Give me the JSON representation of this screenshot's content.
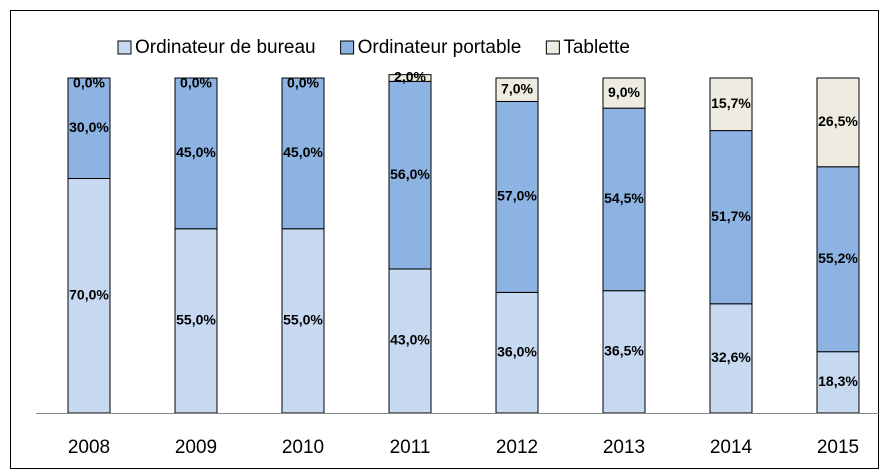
{
  "chart_data": {
    "type": "stacked_bar",
    "categories": [
      "2008",
      "2009",
      "2010",
      "2011",
      "2012",
      "2013",
      "2014",
      "2015"
    ],
    "series": [
      {
        "name": "Ordinateur de bureau",
        "color": "#c6d9f1",
        "values": [
          70,
          55,
          55,
          43,
          36,
          36.5,
          32.6,
          18.3
        ],
        "value_labels": [
          "70,0%",
          "55,0%",
          "55,0%",
          "43,0%",
          "36,0%",
          "36,5%",
          "32,6%",
          "18,3%"
        ]
      },
      {
        "name": "Ordinateur portable",
        "color": "#8db3e2",
        "values": [
          30,
          45,
          45,
          56,
          57,
          54.5,
          51.7,
          55.2
        ],
        "value_labels": [
          "30,0%",
          "45,0%",
          "45,0%",
          "56,0%",
          "57,0%",
          "54,5%",
          "51,7%",
          "55,2%"
        ]
      },
      {
        "name": "Tablette",
        "color": "#eeece1",
        "values": [
          0,
          0,
          0,
          2,
          7,
          9,
          15.7,
          26.5
        ],
        "value_labels": [
          "0,0%",
          "0,0%",
          "0,0%",
          "2,0%",
          "7,0%",
          "9,0%",
          "15,7%",
          "26,5%"
        ]
      }
    ],
    "ylim": [
      0,
      100
    ],
    "legend": "top"
  }
}
